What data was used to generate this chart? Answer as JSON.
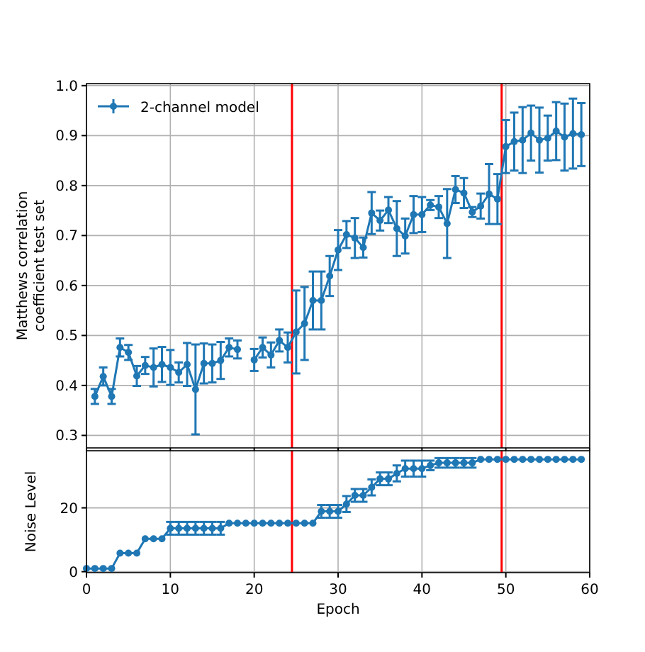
{
  "chart_data": [
    {
      "type": "line",
      "ylabel": "Matthews correlation\ncoefficient test set",
      "xlim": [
        0,
        60
      ],
      "xticks": [
        0,
        10,
        20,
        30,
        40,
        50,
        60
      ],
      "ylim": [
        0.275,
        1.004
      ],
      "yticks": [
        0.3,
        0.4,
        0.5,
        0.6,
        0.7,
        0.8,
        0.9,
        {
          "value": 1,
          "label": "1.0"
        }
      ],
      "tick_labels": "y",
      "grid": true,
      "legend": "top left",
      "marker": "circle",
      "line_style": "solid",
      "x": [
        1,
        2,
        3,
        4,
        5,
        6,
        7,
        8,
        9,
        10,
        11,
        12,
        13,
        14,
        15,
        16,
        17,
        18,
        19,
        20,
        21,
        22,
        23,
        24,
        25,
        26,
        27,
        28,
        29,
        30,
        31,
        32,
        33,
        34,
        35,
        36,
        37,
        38,
        39,
        40,
        41,
        42,
        43,
        44,
        45,
        46,
        47,
        48,
        49,
        50,
        51,
        52,
        53,
        54,
        55,
        56,
        57,
        58,
        59
      ],
      "series": [
        {
          "name": "2-channel model",
          "color": "#1f77b4",
          "values": [
            0.378,
            0.418,
            0.378,
            0.476,
            0.466,
            0.419,
            0.44,
            0.436,
            0.442,
            0.436,
            0.426,
            0.442,
            0.392,
            0.444,
            0.444,
            0.45,
            0.476,
            0.472,
            null,
            0.451,
            0.476,
            0.461,
            0.49,
            0.476,
            0.507,
            0.524,
            0.57,
            0.57,
            0.619,
            0.671,
            0.702,
            0.695,
            0.676,
            0.745,
            0.73,
            0.751,
            0.714,
            0.699,
            0.742,
            0.742,
            0.761,
            0.757,
            0.724,
            0.792,
            0.785,
            0.747,
            0.759,
            0.783,
            0.773,
            0.878,
            0.888,
            0.891,
            0.905,
            0.891,
            0.895,
            0.909,
            0.897,
            0.904,
            0.902
          ],
          "errors": [
            0.015,
            0.018,
            0.015,
            0.018,
            0.015,
            0.02,
            0.017,
            0.038,
            0.035,
            0.035,
            0.02,
            0.043,
            0.09,
            0.04,
            0.038,
            0.037,
            0.018,
            0.018,
            null,
            0.022,
            0.02,
            0.025,
            0.022,
            0.03,
            0.083,
            0.073,
            0.058,
            0.058,
            0.04,
            0.04,
            0.027,
            0.04,
            0.02,
            0.042,
            0.02,
            0.026,
            0.055,
            0.035,
            0.037,
            0.035,
            0.01,
            0.022,
            0.069,
            0.027,
            0.03,
            0.01,
            0.025,
            0.06,
            0.05,
            0.053,
            0.058,
            0.066,
            0.055,
            0.065,
            0.045,
            0.058,
            0.067,
            0.07,
            0.063
          ]
        }
      ],
      "ref_lines": [
        {
          "axis": "x",
          "value": 24.5,
          "color": "#ff0000"
        },
        {
          "axis": "x",
          "value": 49.5,
          "color": "#ff0000"
        }
      ]
    },
    {
      "type": "line",
      "xlabel": "Epoch",
      "ylabel": "Noise Level",
      "xlim": [
        0,
        60
      ],
      "xticks": [
        0,
        10,
        20,
        30,
        40,
        50,
        60
      ],
      "ylim": [
        -0.3,
        37.9
      ],
      "yticks": [
        0,
        20
      ],
      "grid": true,
      "marker": "circle",
      "line_style": "solid",
      "x": [
        0,
        1,
        2,
        3,
        4,
        5,
        6,
        7,
        8,
        9,
        10,
        11,
        12,
        13,
        14,
        15,
        16,
        17,
        18,
        19,
        20,
        21,
        22,
        23,
        24,
        25,
        26,
        27,
        28,
        29,
        30,
        31,
        32,
        33,
        34,
        35,
        36,
        37,
        38,
        39,
        40,
        41,
        42,
        43,
        44,
        45,
        46,
        47,
        48,
        49,
        50,
        51,
        52,
        53,
        54,
        55,
        56,
        57,
        58,
        59
      ],
      "series": [
        {
          "color": "#1f77b4",
          "values": [
            1,
            1,
            1,
            1,
            5.8,
            5.8,
            5.8,
            10.3,
            10.3,
            10.3,
            13.6,
            13.6,
            13.6,
            13.6,
            13.6,
            13.6,
            13.6,
            15.2,
            15.2,
            15.2,
            15.2,
            15.2,
            15.2,
            15.2,
            15.2,
            15.2,
            15.2,
            15.2,
            18.9,
            18.9,
            18.9,
            21.2,
            23.9,
            23.9,
            26.4,
            29.1,
            29.1,
            30.8,
            32.3,
            32.3,
            32.3,
            33.3,
            34.1,
            34.1,
            34.1,
            34.1,
            34.1,
            35.2,
            35.2,
            35.2,
            35.2,
            35.2,
            35.2,
            35.2,
            35.2,
            35.2,
            35.2,
            35.2,
            35.2,
            35.2
          ],
          "errors": [
            null,
            null,
            null,
            null,
            null,
            null,
            null,
            null,
            null,
            null,
            2,
            2,
            2,
            2,
            2,
            2,
            2,
            null,
            null,
            null,
            null,
            null,
            null,
            null,
            null,
            null,
            null,
            null,
            2,
            2,
            2,
            2.5,
            2,
            2,
            2.5,
            2,
            2,
            2.5,
            2.5,
            2.5,
            2.5,
            1.5,
            1.5,
            1.5,
            1.5,
            1.5,
            1.5,
            null,
            null,
            null,
            null,
            null,
            null,
            null,
            null,
            null,
            null,
            null,
            null,
            null
          ]
        }
      ],
      "ref_lines": [
        {
          "axis": "x",
          "value": 24.5,
          "color": "#ff0000"
        },
        {
          "axis": "x",
          "value": 49.5,
          "color": "#ff0000"
        }
      ]
    }
  ]
}
